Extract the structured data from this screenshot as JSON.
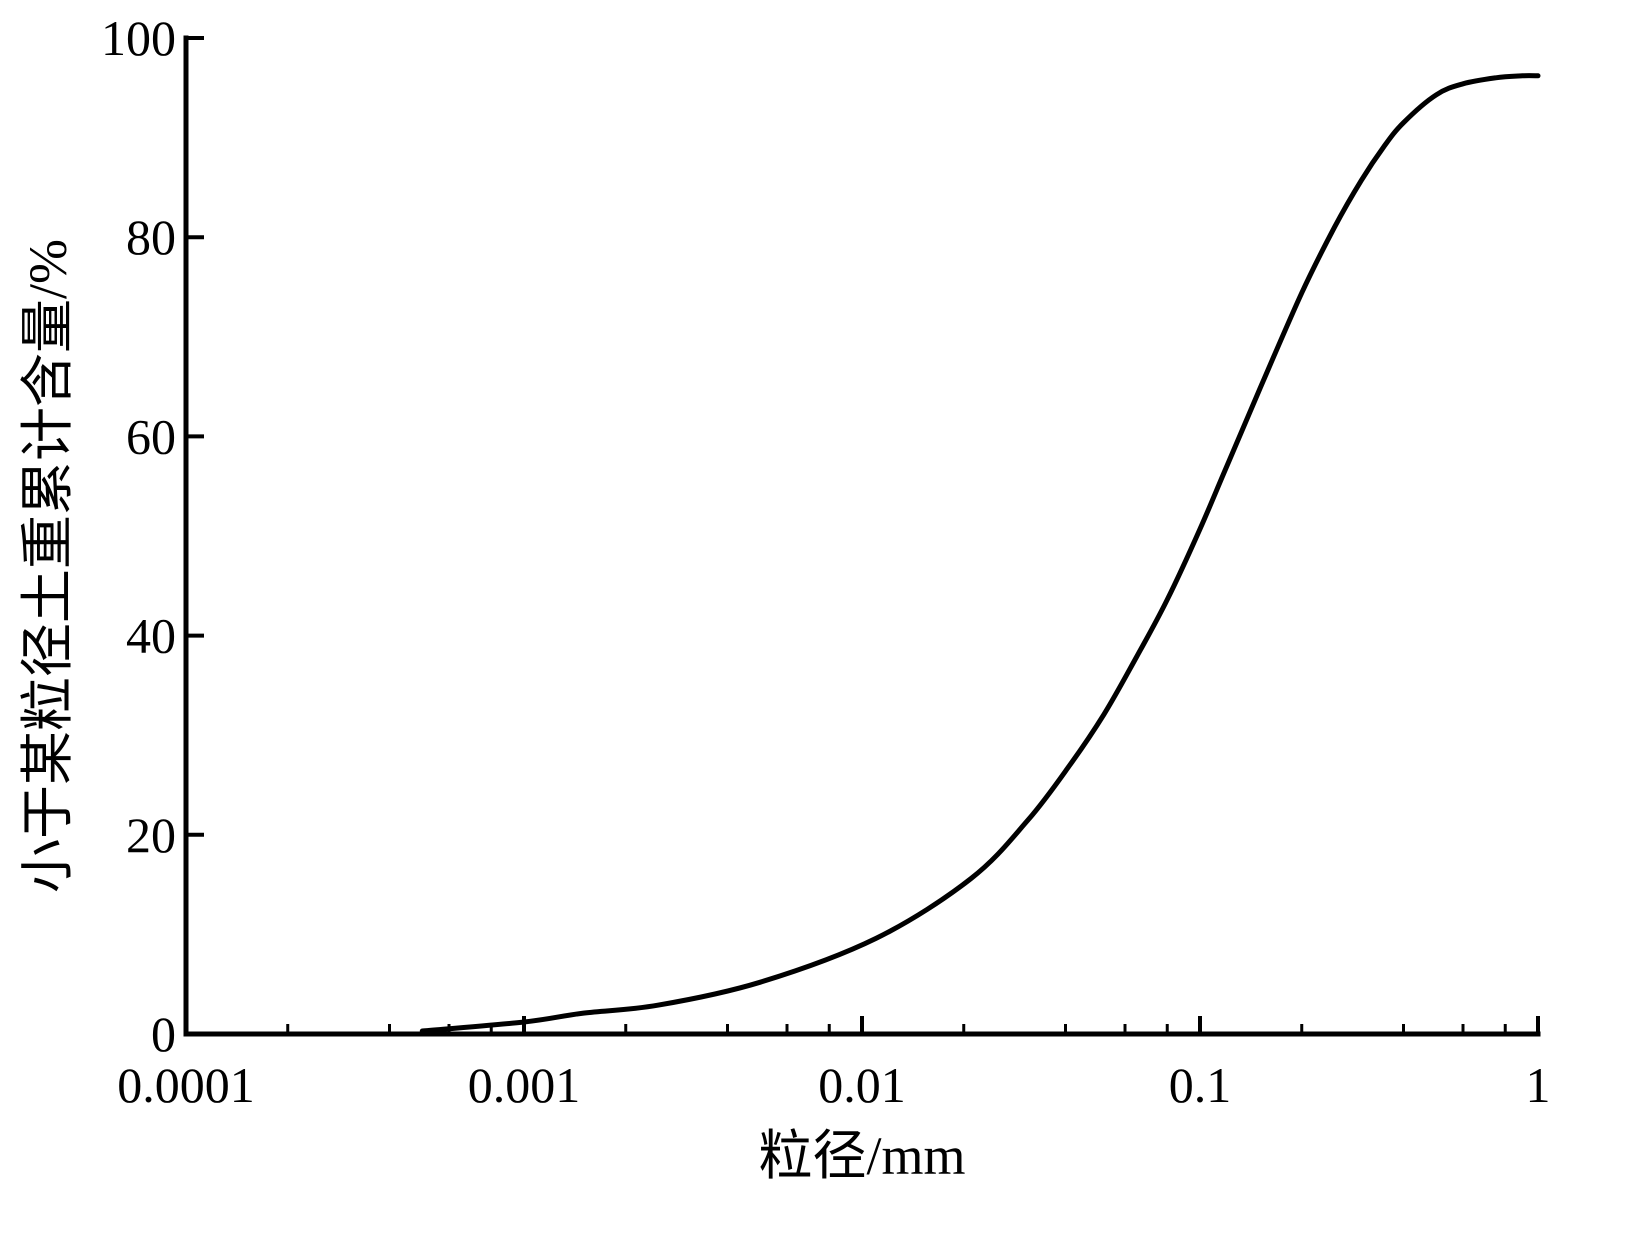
{
  "chart_data": {
    "type": "line",
    "title": "",
    "xlabel": "粒径/mm",
    "ylabel": "小于某粒径土重累计含量/%",
    "x_scale": "log",
    "xlim": [
      0.0001,
      1
    ],
    "ylim": [
      0,
      100
    ],
    "x_ticks": [
      {
        "value": 0.0001,
        "label": "0.0001"
      },
      {
        "value": 0.001,
        "label": "0.001"
      },
      {
        "value": 0.01,
        "label": "0.01"
      },
      {
        "value": 0.1,
        "label": "0.1"
      },
      {
        "value": 1,
        "label": "1"
      }
    ],
    "y_ticks": [
      {
        "value": 0,
        "label": "0"
      },
      {
        "value": 20,
        "label": "20"
      },
      {
        "value": 40,
        "label": "40"
      },
      {
        "value": 60,
        "label": "60"
      },
      {
        "value": 80,
        "label": "80"
      },
      {
        "value": 100,
        "label": "100"
      }
    ],
    "grid": false,
    "line_color": "#000000",
    "series": [
      {
        "x": [
          0.0005,
          0.001,
          0.0015,
          0.0025,
          0.005,
          0.011,
          0.021,
          0.031,
          0.041,
          0.052,
          0.065,
          0.08,
          0.1,
          0.12,
          0.15,
          0.2,
          0.25,
          0.3,
          0.35,
          0.4,
          0.5,
          0.6,
          0.75,
          0.9,
          1
        ],
        "y": [
          0.3,
          1.2,
          2.1,
          2.9,
          5.2,
          9.6,
          15.6,
          21.5,
          26.9,
          32.1,
          37.9,
          43.6,
          50.7,
          57.0,
          64.7,
          74.4,
          81.0,
          85.7,
          89.1,
          91.5,
          94.3,
          95.4,
          96.0,
          96.2,
          96.2
        ]
      }
    ]
  }
}
